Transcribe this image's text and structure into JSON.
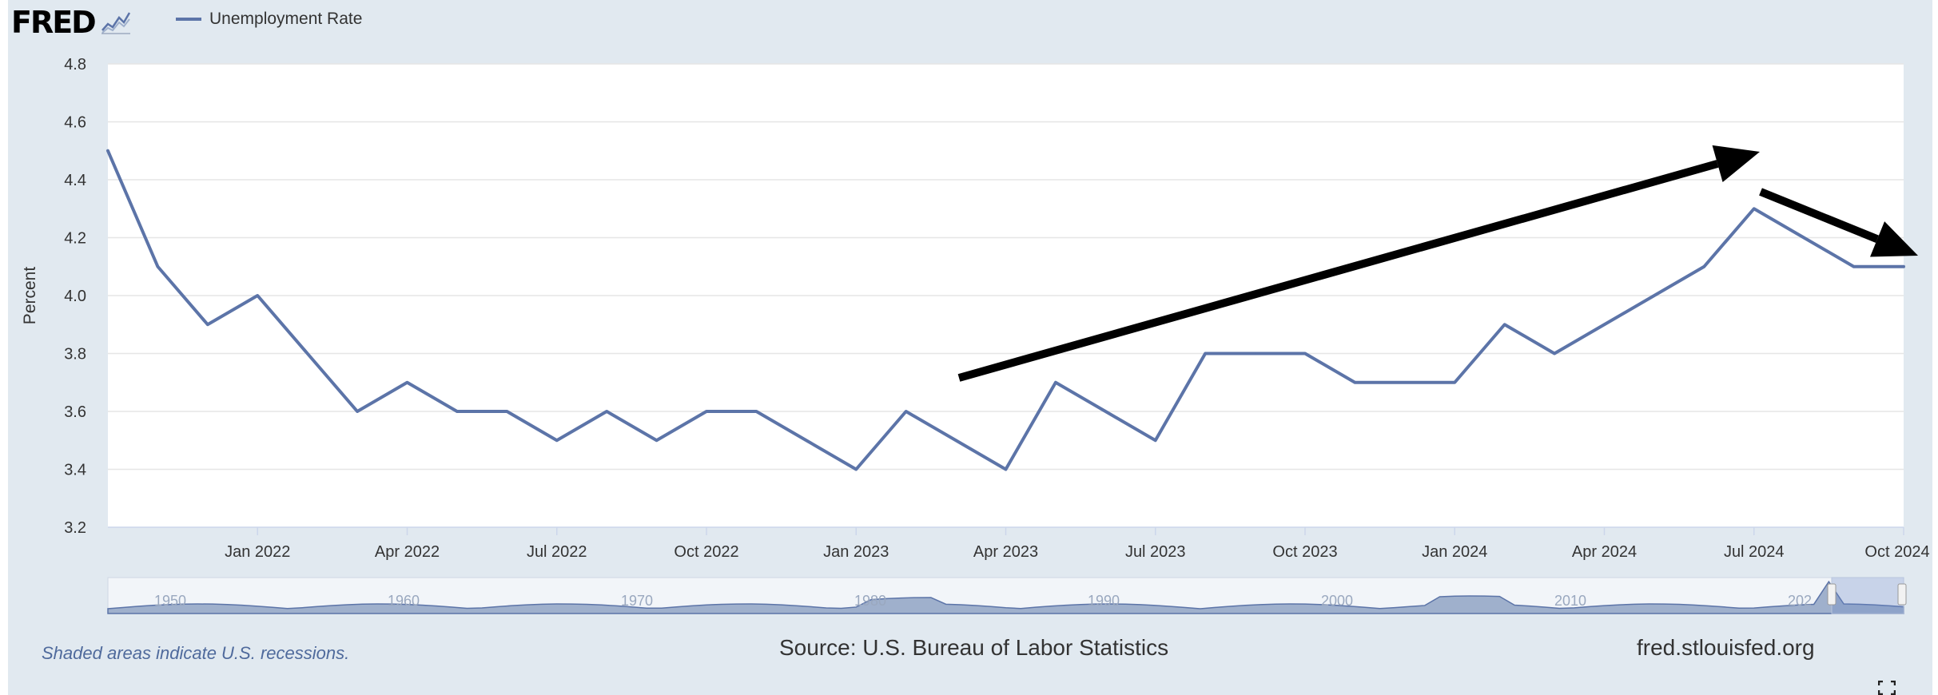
{
  "header": {
    "logo_text": "FRED",
    "logo_icon": "line-chart-icon",
    "legend_label": "Unemployment Rate"
  },
  "chart_data": {
    "type": "line",
    "ylabel": "Percent",
    "ylim": [
      3.2,
      4.8
    ],
    "yticks": [
      "3.2",
      "3.4",
      "3.6",
      "3.8",
      "4.0",
      "4.2",
      "4.4",
      "4.6",
      "4.8"
    ],
    "xlim": [
      "2021-10",
      "2024-10"
    ],
    "xticks": [
      "Jan 2022",
      "Apr 2022",
      "Jul 2022",
      "Oct 2022",
      "Jan 2023",
      "Apr 2023",
      "Jul 2023",
      "Oct 2023",
      "Jan 2024",
      "Apr 2024",
      "Jul 2024",
      "Oct 2024"
    ],
    "grid": true,
    "series": [
      {
        "name": "Unemployment Rate",
        "color": "#5c74a8",
        "x": [
          "2021-10",
          "2021-11",
          "2021-12",
          "2022-01",
          "2022-02",
          "2022-03",
          "2022-04",
          "2022-05",
          "2022-06",
          "2022-07",
          "2022-08",
          "2022-09",
          "2022-10",
          "2022-11",
          "2022-12",
          "2023-01",
          "2023-02",
          "2023-03",
          "2023-04",
          "2023-05",
          "2023-06",
          "2023-07",
          "2023-08",
          "2023-09",
          "2023-10",
          "2023-11",
          "2023-12",
          "2024-01",
          "2024-02",
          "2024-03",
          "2024-04",
          "2024-05",
          "2024-06",
          "2024-07",
          "2024-08",
          "2024-09",
          "2024-10"
        ],
        "values": [
          4.5,
          4.1,
          3.9,
          4.0,
          3.8,
          3.6,
          3.7,
          3.6,
          3.6,
          3.5,
          3.6,
          3.5,
          3.6,
          3.6,
          3.5,
          3.4,
          3.6,
          3.5,
          3.4,
          3.7,
          3.6,
          3.5,
          3.8,
          3.8,
          3.8,
          3.7,
          3.7,
          3.7,
          3.9,
          3.8,
          3.9,
          4.0,
          4.1,
          4.3,
          4.2,
          4.1,
          4.1
        ]
      }
    ],
    "annotations": [
      {
        "type": "arrow",
        "label": "",
        "color": "#000000"
      },
      {
        "type": "arrow",
        "label": "",
        "color": "#000000"
      }
    ],
    "navigator_ticks": [
      "1950",
      "1960",
      "1970",
      "1980",
      "1990",
      "2000",
      "2010",
      "202"
    ]
  },
  "footer": {
    "recession_note": "Shaded areas indicate U.S. recessions.",
    "source": "Source: U.S. Bureau of Labor Statistics",
    "site": "fred.stlouisfed.org",
    "fullscreen_icon": "fullscreen-icon"
  }
}
